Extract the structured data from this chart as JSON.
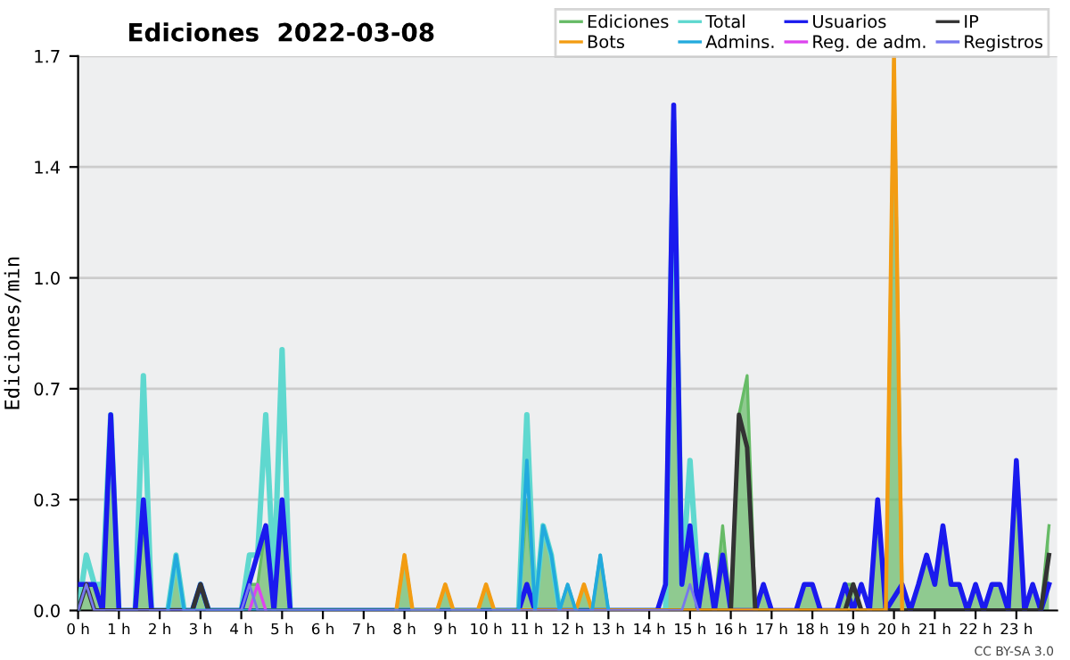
{
  "chart_data": {
    "type": "line",
    "title": "Ediciones  2022-03-08",
    "ylabel": "Ediciones/min",
    "xlim": [
      0,
      24
    ],
    "xticks": [
      {
        "value": 0,
        "label": "0 h"
      },
      {
        "value": 1,
        "label": "1 h"
      },
      {
        "value": 2,
        "label": "2 h"
      },
      {
        "value": 3,
        "label": "3 h"
      },
      {
        "value": 4,
        "label": "4 h"
      },
      {
        "value": 5,
        "label": "5 h"
      },
      {
        "value": 6,
        "label": "6 h"
      },
      {
        "value": 7,
        "label": "7 h"
      },
      {
        "value": 8,
        "label": "8 h"
      },
      {
        "value": 9,
        "label": "9 h"
      },
      {
        "value": 10,
        "label": "10 h"
      },
      {
        "value": 11,
        "label": "11 h"
      },
      {
        "value": 12,
        "label": "12 h"
      },
      {
        "value": 13,
        "label": "13 h"
      },
      {
        "value": 14,
        "label": "14 h"
      },
      {
        "value": 15,
        "label": "15 h"
      },
      {
        "value": 16,
        "label": "16 h"
      },
      {
        "value": 17,
        "label": "17 h"
      },
      {
        "value": 18,
        "label": "18 h"
      },
      {
        "value": 19,
        "label": "19 h"
      },
      {
        "value": 20,
        "label": "20 h"
      },
      {
        "value": 21,
        "label": "21 h"
      },
      {
        "value": 22,
        "label": "22 h"
      },
      {
        "value": 23,
        "label": "23 h"
      }
    ],
    "ylim": [
      0,
      1.7
    ],
    "yticks": [
      {
        "value": 0,
        "label": "0.0"
      },
      {
        "value": 0.34,
        "label": "0.3"
      },
      {
        "value": 0.68,
        "label": "0.7"
      },
      {
        "value": 1.02,
        "label": "1.0"
      },
      {
        "value": 1.36,
        "label": "1.4"
      },
      {
        "value": 1.7,
        "label": "1.7"
      }
    ],
    "grid": "y",
    "legend": "top right",
    "annotations": [
      "CC BY-SA 3.0"
    ],
    "series": [
      {
        "name": "Ediciones",
        "type": "area",
        "color": "#66bb66",
        "x": [
          0,
          0.2,
          0.4,
          0.6,
          0.8,
          1.0,
          1.4,
          1.6,
          1.8,
          2.2,
          2.4,
          2.6,
          2.8,
          3.0,
          3.2,
          4.0,
          4.2,
          4.4,
          4.6,
          4.8,
          5.0,
          5.2,
          7.8,
          8.0,
          8.2,
          8.8,
          9.0,
          9.2,
          9.8,
          10.0,
          10.2,
          10.8,
          11.0,
          11.2,
          11.4,
          11.6,
          11.8,
          12.0,
          12.2,
          12.4,
          12.6,
          12.8,
          13.0,
          14.4,
          14.6,
          14.8,
          15.0,
          15.2,
          15.4,
          15.6,
          15.8,
          16.0,
          16.2,
          16.4,
          16.6,
          16.8,
          17.0,
          17.6,
          17.8,
          18.0,
          18.2,
          18.6,
          18.8,
          19.0,
          19.2,
          19.4,
          19.6,
          19.8,
          20.0,
          20.2,
          20.4,
          20.6,
          20.8,
          21.0,
          21.2,
          21.4,
          21.6,
          21.8,
          22.0,
          22.2,
          22.4,
          22.6,
          22.8,
          23.0,
          23.2,
          23.4,
          23.6,
          23.8
        ],
        "values": [
          0,
          0.08,
          0.08,
          0.08,
          0.6,
          0,
          0,
          0.26,
          0,
          0,
          0.17,
          0,
          0,
          0.08,
          0,
          0,
          0.08,
          0.08,
          0.26,
          0.08,
          0.34,
          0,
          0,
          0.17,
          0,
          0,
          0.08,
          0,
          0,
          0.08,
          0,
          0,
          0.34,
          0,
          0.26,
          0.17,
          0,
          0.08,
          0,
          0.08,
          0,
          0.17,
          0,
          0,
          1.5,
          0.08,
          0.26,
          0.08,
          0.17,
          0,
          0.26,
          0,
          0.6,
          0.72,
          0,
          0.08,
          0,
          0,
          0.08,
          0.08,
          0,
          0,
          0.08,
          0.08,
          0,
          0,
          0.34,
          0,
          1.7,
          0.08,
          0,
          0.08,
          0.17,
          0.08,
          0.26,
          0.08,
          0.08,
          0,
          0.08,
          0,
          0.08,
          0.08,
          0,
          0.46,
          0,
          0.08,
          0,
          0.26
        ]
      },
      {
        "name": "Total",
        "color": "#5fd8cf",
        "x": [
          0,
          0.2,
          0.4,
          0.6,
          0.8,
          1.0,
          1.4,
          1.6,
          1.8,
          2.2,
          2.4,
          2.6,
          2.8,
          3.0,
          3.2,
          4.0,
          4.2,
          4.4,
          4.6,
          4.8,
          5.0,
          5.2,
          10.8,
          11.0,
          11.2,
          11.4,
          11.6,
          11.8,
          14.4,
          14.6,
          14.8,
          15.0,
          15.2,
          15.4
        ],
        "values": [
          0,
          0.17,
          0.08,
          0.08,
          0.6,
          0,
          0,
          0.72,
          0,
          0,
          0.17,
          0,
          0,
          0.08,
          0,
          0,
          0.17,
          0.17,
          0.6,
          0.08,
          0.8,
          0,
          0,
          0.6,
          0,
          0.26,
          0.17,
          0,
          0,
          1.5,
          0.08,
          0.46,
          0.08,
          0.17
        ]
      },
      {
        "name": "Usuarios",
        "color": "#1a1aee",
        "x": [
          0,
          0.4,
          0.6,
          0.8,
          1.0,
          1.4,
          1.6,
          1.8,
          2.8,
          3.0,
          3.2,
          4.0,
          4.6,
          4.8,
          5.0,
          5.2,
          10.8,
          11.0,
          11.2,
          14.2,
          14.4,
          14.6,
          14.8,
          15.0,
          15.2,
          15.4,
          15.6,
          15.8,
          16.0,
          16.2,
          16.6,
          16.8,
          17.0,
          17.6,
          17.8,
          18.0,
          18.2,
          18.6,
          18.8,
          19.0,
          19.2,
          19.4,
          19.6,
          19.8,
          20.2,
          20.4,
          20.6,
          20.8,
          21.0,
          21.2,
          21.4,
          21.6,
          21.8,
          22.0,
          22.2,
          22.4,
          22.6,
          22.8,
          23.0,
          23.2,
          23.4,
          23.6,
          23.8
        ],
        "values": [
          0.08,
          0.08,
          0,
          0.6,
          0,
          0,
          0.34,
          0,
          0,
          0.08,
          0,
          0,
          0.26,
          0,
          0.34,
          0,
          0,
          0.08,
          0,
          0,
          0.08,
          1.55,
          0.08,
          0.26,
          0,
          0.17,
          0,
          0.17,
          0,
          0,
          0,
          0.08,
          0,
          0,
          0.08,
          0.08,
          0,
          0,
          0.08,
          0,
          0.08,
          0,
          0.34,
          0,
          0.08,
          0,
          0.08,
          0.17,
          0.08,
          0.26,
          0.08,
          0.08,
          0,
          0.08,
          0,
          0.08,
          0.08,
          0,
          0.46,
          0,
          0.08,
          0,
          0.08
        ]
      },
      {
        "name": "IP",
        "color": "#333333",
        "x": [
          0,
          0.2,
          0.4,
          2.8,
          3.0,
          3.2,
          16.0,
          16.2,
          16.4,
          16.6,
          18.8,
          19.0,
          19.2,
          23.6,
          23.8
        ],
        "values": [
          0,
          0.08,
          0,
          0,
          0.08,
          0,
          0,
          0.6,
          0.5,
          0,
          0,
          0.08,
          0,
          0,
          0.17
        ]
      },
      {
        "name": "Bots",
        "color": "#f39c12",
        "x": [
          7.8,
          8.0,
          8.2,
          8.8,
          9.0,
          9.2,
          9.8,
          10.0,
          10.2,
          12.2,
          12.4,
          12.6,
          19.8,
          20.0,
          20.2
        ],
        "values": [
          0,
          0.17,
          0,
          0,
          0.08,
          0,
          0,
          0.08,
          0,
          0,
          0.08,
          0,
          0,
          1.7,
          0
        ]
      },
      {
        "name": "Admins.",
        "color": "#22aadd",
        "x": [
          2.2,
          2.4,
          2.6,
          10.8,
          11.0,
          11.2,
          11.4,
          11.6,
          11.8,
          12.0,
          12.2,
          12.6,
          12.8,
          13.0
        ],
        "values": [
          0,
          0.17,
          0,
          0,
          0.46,
          0,
          0.26,
          0.17,
          0,
          0.08,
          0,
          0,
          0.17,
          0
        ]
      },
      {
        "name": "Reg. de adm.",
        "color": "#dd44ee",
        "x": [
          4.2,
          4.4,
          4.6
        ],
        "values": [
          0,
          0.08,
          0
        ]
      },
      {
        "name": "Registros",
        "color": "#7777ee",
        "x": [
          0,
          0.2,
          0.4,
          4.0,
          4.2,
          4.4,
          14.8,
          15.0,
          15.2
        ],
        "values": [
          0,
          0.08,
          0,
          0,
          0.08,
          0,
          0,
          0.08,
          0
        ]
      }
    ]
  }
}
